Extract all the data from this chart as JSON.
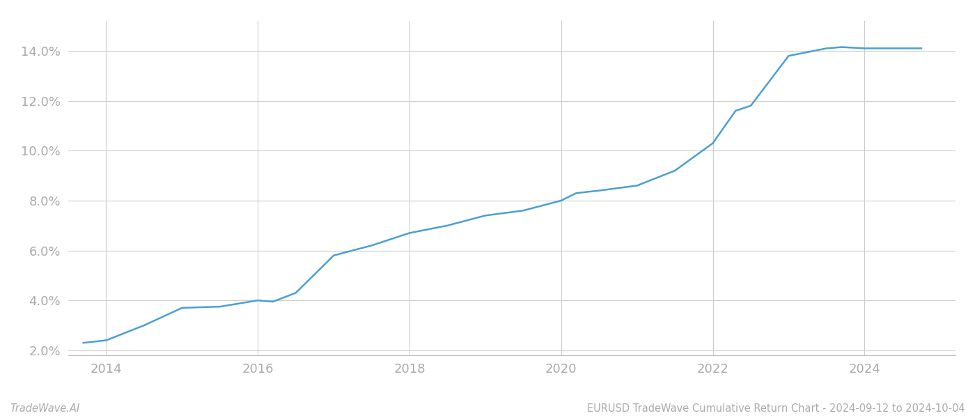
{
  "footer_left": "TradeWave.AI",
  "footer_right": "EURUSD TradeWave Cumulative Return Chart - 2024-09-12 to 2024-10-04",
  "line_color": "#4a9fd4",
  "background_color": "#ffffff",
  "grid_color": "#cccccc",
  "x_years": [
    2013.7,
    2014.0,
    2014.5,
    2015.0,
    2015.5,
    2016.0,
    2016.2,
    2016.5,
    2017.0,
    2017.5,
    2018.0,
    2018.5,
    2019.0,
    2019.5,
    2020.0,
    2020.2,
    2020.5,
    2021.0,
    2021.5,
    2022.0,
    2022.3,
    2022.5,
    2023.0,
    2023.5,
    2023.7,
    2024.0,
    2024.75
  ],
  "y_values": [
    2.3,
    2.4,
    3.0,
    3.7,
    3.75,
    4.0,
    3.95,
    4.3,
    5.8,
    6.2,
    6.7,
    7.0,
    7.4,
    7.6,
    8.0,
    8.3,
    8.4,
    8.6,
    9.2,
    10.3,
    11.6,
    11.8,
    13.8,
    14.1,
    14.15,
    14.1,
    14.1
  ],
  "xlim": [
    2013.5,
    2025.2
  ],
  "ylim": [
    1.8,
    15.2
  ],
  "yticks": [
    2.0,
    4.0,
    6.0,
    8.0,
    10.0,
    12.0,
    14.0
  ],
  "xticks": [
    2014,
    2016,
    2018,
    2020,
    2022,
    2024
  ],
  "line_width": 1.8,
  "tick_label_color": "#aaaaaa",
  "footer_fontsize": 10.5,
  "tick_fontsize": 13
}
